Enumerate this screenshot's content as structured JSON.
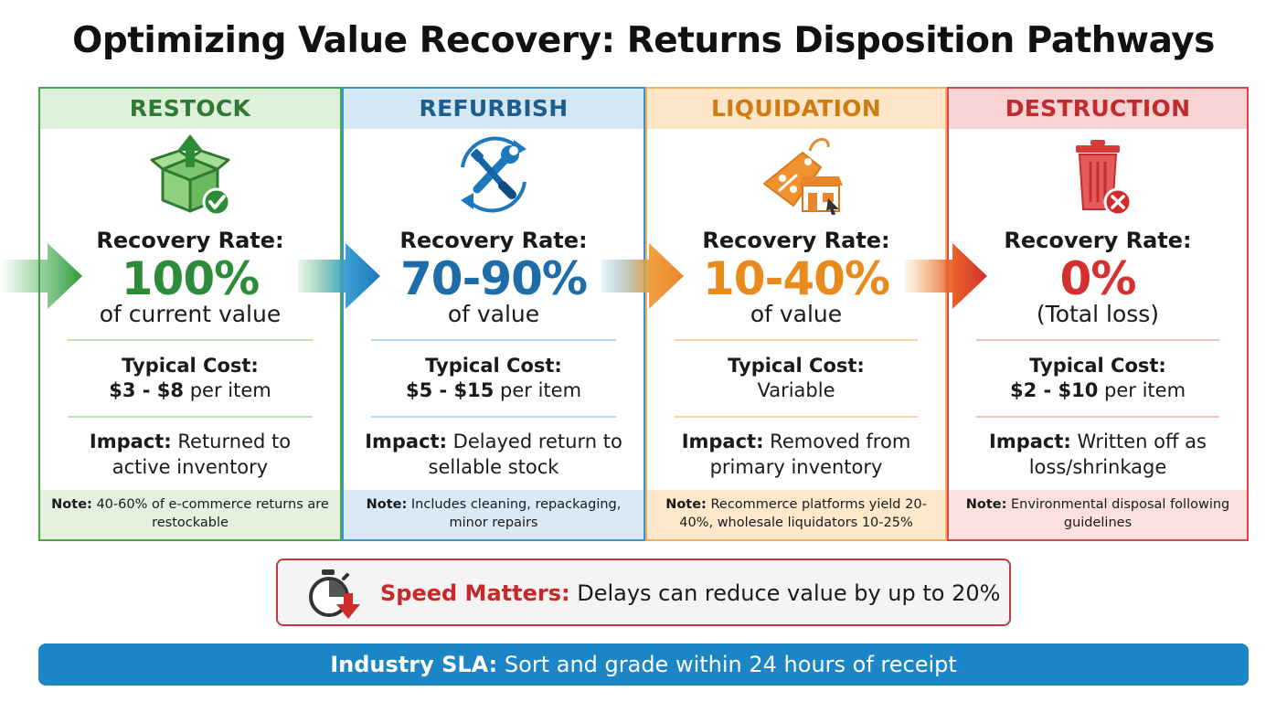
{
  "title": "Optimizing Value Recovery: Returns Disposition Pathways",
  "columns": [
    {
      "heading": "RESTOCK",
      "icon": "box-upload-check-icon",
      "rate_label": "Recovery Rate:",
      "rate_value": "100%",
      "rate_sub": "of current value",
      "cost_label": "Typical Cost:",
      "cost_amount": "$3 - $8",
      "cost_unit": " per item",
      "impact_label": "Impact:",
      "impact_text": " Returned to active inventory",
      "note_label": "Note:",
      "note_text": " 40-60% of e-commerce returns are restockable",
      "color": "#2e8b3a"
    },
    {
      "heading": "REFURBISH",
      "icon": "wrench-screwdriver-cycle-icon",
      "rate_label": "Recovery Rate:",
      "rate_value": "70-90%",
      "rate_sub": "of value",
      "cost_label": "Typical Cost:",
      "cost_amount": "$5 - $15",
      "cost_unit": " per item",
      "impact_label": "Impact:",
      "impact_text": " Delayed return to sellable stock",
      "note_label": "Note:",
      "note_text": " Includes cleaning, repackaging, minor repairs",
      "color": "#1f6da8"
    },
    {
      "heading": "LIQUIDATION",
      "icon": "price-tag-store-icon",
      "rate_label": "Recovery Rate:",
      "rate_value": "10-40%",
      "rate_sub": "of value",
      "cost_label": "Typical Cost:",
      "cost_amount": "",
      "cost_unit": "Variable",
      "impact_label": "Impact:",
      "impact_text": " Removed from primary inventory",
      "note_label": "Note:",
      "note_text": " Recommerce platforms yield 20-40%, wholesale liquidators 10-25%",
      "color": "#e88a1c"
    },
    {
      "heading": "DESTRUCTION",
      "icon": "trash-can-x-icon",
      "rate_label": "Recovery Rate:",
      "rate_value": "0%",
      "rate_sub": "(Total loss)",
      "cost_label": "Typical Cost:",
      "cost_amount": "$2 - $10",
      "cost_unit": " per item",
      "impact_label": "Impact:",
      "impact_text": " Written off as loss/shrinkage",
      "note_label": "Note:",
      "note_text": " Environmental disposal following guidelines",
      "color": "#d3302f"
    }
  ],
  "speed": {
    "icon": "stopwatch-down-arrow-icon",
    "label": "Speed Matters:",
    "text": " Delays can reduce value by up to 20%"
  },
  "sla": {
    "label": "Industry SLA:",
    "text": " Sort and grade within 24 hours of receipt"
  }
}
